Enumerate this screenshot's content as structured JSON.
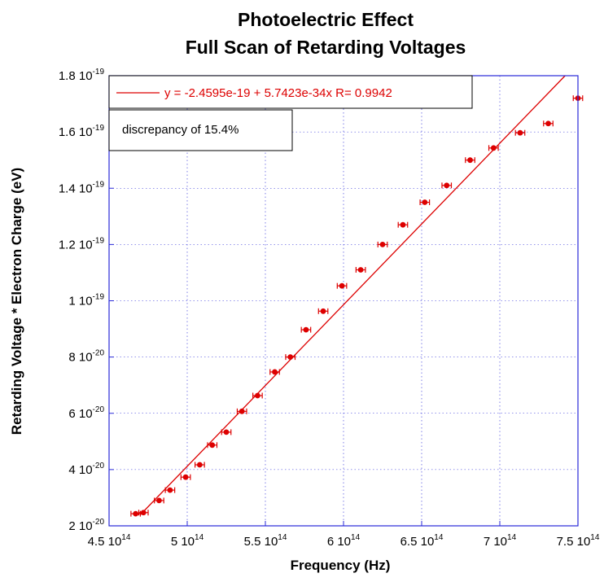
{
  "chart_data": {
    "type": "scatter",
    "title": [
      "Photoelectric Effect",
      "Full Scan of Retarding Voltages"
    ],
    "xlabel": "Frequency (Hz)",
    "ylabel": "Retarding Voltage * Electron Charge (eV)",
    "xlim": [
      450000000000000.0,
      750000000000000.0
    ],
    "ylim": [
      2e-20,
      1.8e-19
    ],
    "x_ticks": [
      {
        "value": 450000000000000.0,
        "mantissa": "4.5 10",
        "exp": "14"
      },
      {
        "value": 500000000000000.0,
        "mantissa": "5 10",
        "exp": "14"
      },
      {
        "value": 550000000000000.0,
        "mantissa": "5.5 10",
        "exp": "14"
      },
      {
        "value": 600000000000000.0,
        "mantissa": "6 10",
        "exp": "14"
      },
      {
        "value": 650000000000000.0,
        "mantissa": "6.5 10",
        "exp": "14"
      },
      {
        "value": 700000000000000.0,
        "mantissa": "7 10",
        "exp": "14"
      },
      {
        "value": 750000000000000.0,
        "mantissa": "7.5 10",
        "exp": "14"
      }
    ],
    "y_ticks": [
      {
        "value": 2e-20,
        "mantissa": "2 10",
        "exp": "-20"
      },
      {
        "value": 4e-20,
        "mantissa": "4 10",
        "exp": "-20"
      },
      {
        "value": 6e-20,
        "mantissa": "6 10",
        "exp": "-20"
      },
      {
        "value": 8e-20,
        "mantissa": "8 10",
        "exp": "-20"
      },
      {
        "value": 1e-19,
        "mantissa": "1 10",
        "exp": "-19"
      },
      {
        "value": 1.2e-19,
        "mantissa": "1.2 10",
        "exp": "-19"
      },
      {
        "value": 1.4e-19,
        "mantissa": "1.4 10",
        "exp": "-19"
      },
      {
        "value": 1.6e-19,
        "mantissa": "1.6 10",
        "exp": "-19"
      },
      {
        "value": 1.8e-19,
        "mantissa": "1.8 10",
        "exp": "-19"
      }
    ],
    "series": [
      {
        "color": "#dd0000",
        "marker": "circle",
        "xerr": 3000000000000.0,
        "points": [
          {
            "x": 467000000000000.0,
            "y": 2.43e-20
          },
          {
            "x": 472000000000000.0,
            "y": 2.47e-20
          },
          {
            "x": 482000000000000.0,
            "y": 2.9e-20
          },
          {
            "x": 489000000000000.0,
            "y": 3.27e-20
          },
          {
            "x": 499000000000000.0,
            "y": 3.73e-20
          },
          {
            "x": 508000000000000.0,
            "y": 4.17e-20
          },
          {
            "x": 516000000000000.0,
            "y": 4.87e-20
          },
          {
            "x": 525000000000000.0,
            "y": 5.33e-20
          },
          {
            "x": 535000000000000.0,
            "y": 6.07e-20
          },
          {
            "x": 545000000000000.0,
            "y": 6.63e-20
          },
          {
            "x": 556000000000000.0,
            "y": 7.47e-20
          },
          {
            "x": 566000000000000.0,
            "y": 8e-20
          },
          {
            "x": 576000000000000.0,
            "y": 8.97e-20
          },
          {
            "x": 587000000000000.0,
            "y": 9.63e-20
          },
          {
            "x": 599000000000000.0,
            "y": 1.053e-19
          },
          {
            "x": 611000000000000.0,
            "y": 1.11e-19
          },
          {
            "x": 625000000000000.0,
            "y": 1.2e-19
          },
          {
            "x": 638000000000000.0,
            "y": 1.27e-19
          },
          {
            "x": 652000000000000.0,
            "y": 1.35e-19
          },
          {
            "x": 666000000000000.0,
            "y": 1.41e-19
          },
          {
            "x": 681000000000000.0,
            "y": 1.5e-19
          },
          {
            "x": 696000000000000.0,
            "y": 1.543e-19
          },
          {
            "x": 713000000000000.0,
            "y": 1.597e-19
          },
          {
            "x": 731000000000000.0,
            "y": 1.63e-19
          },
          {
            "x": 750000000000000.0,
            "y": 1.72e-19
          }
        ]
      }
    ],
    "fit": {
      "intercept": -2.4595e-19,
      "slope": 5.7423e-34,
      "color": "#dd0000",
      "x_start": 470000000000000.0,
      "label": "y = -2.4595e-19 + 5.7423e-34x   R= 0.9942"
    },
    "annotation": "discrepancy of 15.4%",
    "grid": true,
    "legend_position": "top-left"
  }
}
